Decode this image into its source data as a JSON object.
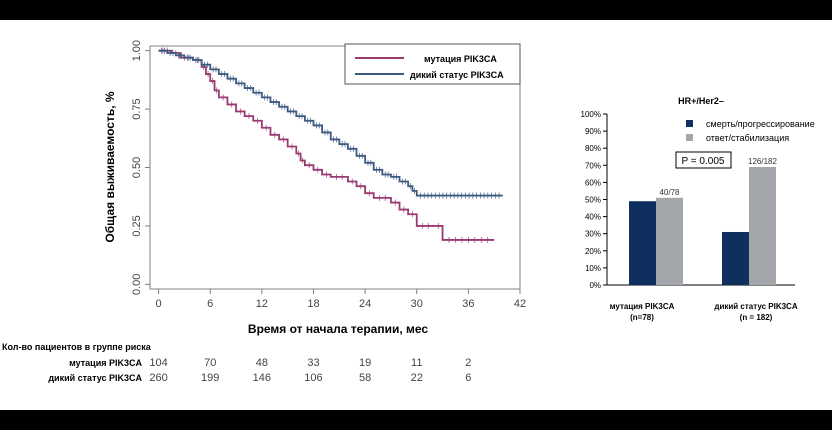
{
  "chart_data": [
    {
      "type": "line",
      "subtype": "kaplan-meier",
      "xlabel": "Время от начала терапии, мес",
      "ylabel": "Общая выживаемость, %",
      "xlim": [
        -1,
        42
      ],
      "ylim": [
        -0.02,
        1.02
      ],
      "x_ticks": [
        0,
        6,
        12,
        18,
        24,
        30,
        36,
        42
      ],
      "y_ticks": [
        0.0,
        0.25,
        0.5,
        0.75,
        1.0
      ],
      "y_tick_labels": [
        "0.00",
        "0.25",
        "0.50",
        "0.75",
        "1.00"
      ],
      "legend_position": "top-right",
      "series": [
        {
          "name": "мутация PIK3CA",
          "color": "#9b3a72",
          "steps": [
            [
              0,
              1.0
            ],
            [
              1.5,
              0.99
            ],
            [
              2.5,
              0.97
            ],
            [
              4,
              0.96
            ],
            [
              5,
              0.93
            ],
            [
              5.5,
              0.9
            ],
            [
              6,
              0.87
            ],
            [
              6.5,
              0.83
            ],
            [
              7,
              0.8
            ],
            [
              8,
              0.77
            ],
            [
              9,
              0.74
            ],
            [
              10,
              0.72
            ],
            [
              11,
              0.7
            ],
            [
              12,
              0.67
            ],
            [
              13,
              0.64
            ],
            [
              14,
              0.62
            ],
            [
              15,
              0.59
            ],
            [
              16,
              0.56
            ],
            [
              16.5,
              0.53
            ],
            [
              17,
              0.51
            ],
            [
              18,
              0.49
            ],
            [
              19,
              0.47
            ],
            [
              20,
              0.46
            ],
            [
              22,
              0.44
            ],
            [
              23,
              0.42
            ],
            [
              24,
              0.39
            ],
            [
              25,
              0.37
            ],
            [
              27,
              0.35
            ],
            [
              28,
              0.32
            ],
            [
              29,
              0.3
            ],
            [
              30,
              0.25
            ],
            [
              32,
              0.25
            ],
            [
              33,
              0.19
            ],
            [
              39,
              0.19
            ]
          ]
        },
        {
          "name": "дикий статус PIK3CA",
          "color": "#3d5a80",
          "steps": [
            [
              0,
              1.0
            ],
            [
              1,
              0.99
            ],
            [
              2,
              0.98
            ],
            [
              3,
              0.97
            ],
            [
              4,
              0.96
            ],
            [
              5,
              0.94
            ],
            [
              6,
              0.92
            ],
            [
              7,
              0.9
            ],
            [
              8,
              0.88
            ],
            [
              9,
              0.86
            ],
            [
              10,
              0.84
            ],
            [
              11,
              0.82
            ],
            [
              12,
              0.8
            ],
            [
              13,
              0.78
            ],
            [
              14,
              0.76
            ],
            [
              15,
              0.74
            ],
            [
              16,
              0.72
            ],
            [
              17,
              0.7
            ],
            [
              18,
              0.68
            ],
            [
              19,
              0.65
            ],
            [
              20,
              0.62
            ],
            [
              21,
              0.6
            ],
            [
              22,
              0.58
            ],
            [
              23,
              0.55
            ],
            [
              24,
              0.52
            ],
            [
              25,
              0.49
            ],
            [
              26,
              0.47
            ],
            [
              27,
              0.46
            ],
            [
              28,
              0.44
            ],
            [
              29,
              0.42
            ],
            [
              29.5,
              0.4
            ],
            [
              30,
              0.38
            ],
            [
              40,
              0.38
            ]
          ]
        }
      ],
      "risk_table": {
        "title": "Кол-во пациентов в группе риска",
        "times": [
          0,
          6,
          12,
          18,
          24,
          30,
          36
        ],
        "rows": [
          {
            "label": "мутация PIK3CA",
            "counts": [
              "104",
              "70",
              "48",
              "33",
              "19",
              "11",
              "2"
            ]
          },
          {
            "label": "дикий статус PIK3CA",
            "counts": [
              "260",
              "199",
              "146",
              "106",
              "58",
              "22",
              "6"
            ]
          }
        ]
      }
    },
    {
      "type": "bar",
      "title": "HR+/Her2–",
      "ylim": [
        0,
        100
      ],
      "y_ticks": [
        "0%",
        "10%",
        "20%",
        "30%",
        "40%",
        "50%",
        "60%",
        "70%",
        "80%",
        "90%",
        "100%"
      ],
      "categories": [
        "мутация PIK3CA\n(n=78)",
        "дикий статус PIK3CA\n(n = 182)"
      ],
      "series": [
        {
          "name": "смерть/прогрессирование",
          "color": "#0f2f5e",
          "values": [
            49,
            31
          ]
        },
        {
          "name": "ответ/стабилизация",
          "color": "#a3a6ab",
          "values": [
            51,
            69
          ]
        }
      ],
      "annotations": {
        "bar_labels": [
          "40/78",
          "126/182"
        ],
        "p_value_label": "P = 0.005"
      },
      "legend_position": "top-right",
      "grid": false
    }
  ]
}
